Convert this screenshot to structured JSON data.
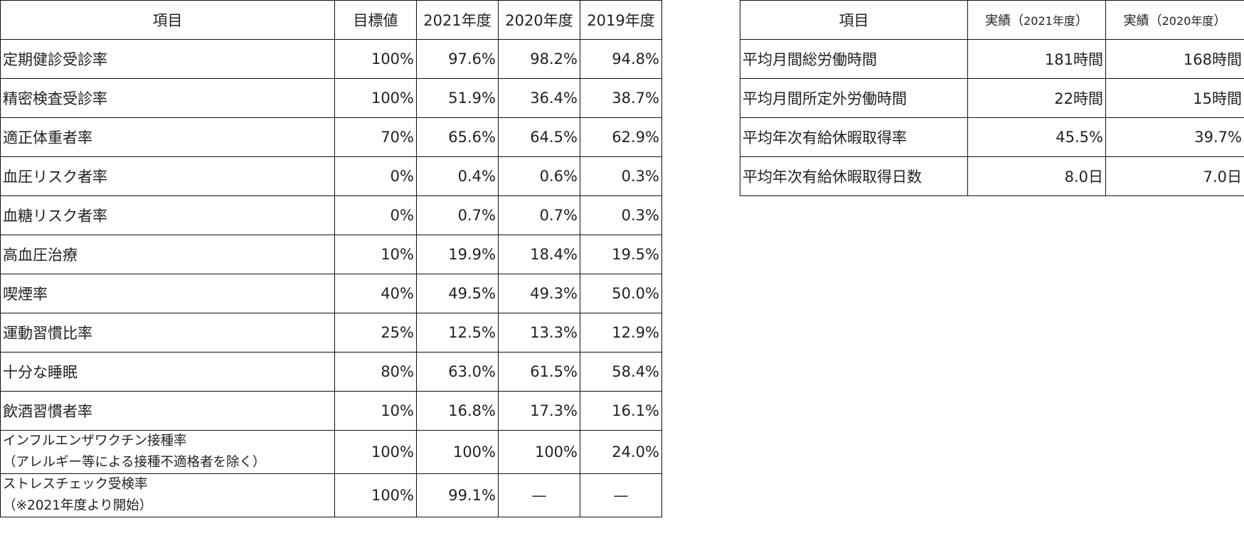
{
  "health": {
    "headers": [
      "項目",
      "目標値",
      "2021年度",
      "2020年度",
      "2019年度"
    ],
    "rows": [
      {
        "item": "定期健診受診率",
        "target": "100%",
        "y2021": "97.6%",
        "y2020": "98.2%",
        "y2019": "94.8%"
      },
      {
        "item": "精密検査受診率",
        "target": "100%",
        "y2021": "51.9%",
        "y2020": "36.4%",
        "y2019": "38.7%"
      },
      {
        "item": "適正体重者率",
        "target": "70%",
        "y2021": "65.6%",
        "y2020": "64.5%",
        "y2019": "62.9%"
      },
      {
        "item": "血圧リスク者率",
        "target": "0%",
        "y2021": "0.4%",
        "y2020": "0.6%",
        "y2019": "0.3%"
      },
      {
        "item": "血糖リスク者率",
        "target": "0%",
        "y2021": "0.7%",
        "y2020": "0.7%",
        "y2019": "0.3%"
      },
      {
        "item": "高血圧治療",
        "target": "10%",
        "y2021": "19.9%",
        "y2020": "18.4%",
        "y2019": "19.5%"
      },
      {
        "item": "喫煙率",
        "target": "40%",
        "y2021": "49.5%",
        "y2020": "49.3%",
        "y2019": "50.0%"
      },
      {
        "item": "運動習慣比率",
        "target": "25%",
        "y2021": "12.5%",
        "y2020": "13.3%",
        "y2019": "12.9%"
      },
      {
        "item": "十分な睡眠",
        "target": "80%",
        "y2021": "63.0%",
        "y2020": "61.5%",
        "y2019": "58.4%"
      },
      {
        "item": "飲酒習慣者率",
        "target": "10%",
        "y2021": "16.8%",
        "y2020": "17.3%",
        "y2019": "16.1%"
      }
    ],
    "flu": {
      "line1": "インフルエンザワクチン接種率",
      "line2": "（アレルギー等による接種不適格者を除く）",
      "target": "100%",
      "y2021": "100%",
      "y2020": "100%",
      "y2019": "24.0%"
    },
    "stress": {
      "line1": "ストレスチェック受検率",
      "line2": "（※2021年度より開始）",
      "target": "100%",
      "y2021": "99.1%",
      "y2020": "—",
      "y2019": "—"
    }
  },
  "work": {
    "headers": {
      "item": "項目",
      "h1_prefix": "実績（",
      "h1_year": "2021年度",
      "h1_suffix": "）",
      "h2_prefix": "実績（",
      "h2_year": "2020年度",
      "h2_suffix": "）"
    },
    "rows": [
      {
        "item": "平均月間総労働時間",
        "y2021": "181時間",
        "y2020": "168時間"
      },
      {
        "item": "平均月間所定外労働時間",
        "y2021": "22時間",
        "y2020": "15時間"
      },
      {
        "item": "平均年次有給休暇取得率",
        "y2021": "45.5%",
        "y2020": "39.7%"
      },
      {
        "item": "平均年次有給休暇取得日数",
        "y2021": "8.0日",
        "y2020": "7.0日"
      }
    ]
  }
}
